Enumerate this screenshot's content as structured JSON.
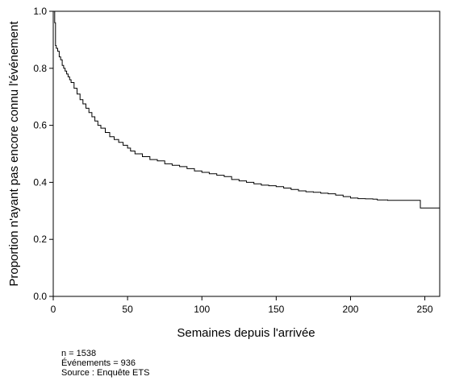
{
  "chart_data": {
    "type": "line",
    "line_style": "step",
    "xlabel": "Semaines depuis l'arrivée",
    "ylabel": "Proportion n'ayant pas encore connu l'événement",
    "xlim": [
      0,
      260
    ],
    "ylim": [
      0.0,
      1.0
    ],
    "x_ticks": [
      "0",
      "50",
      "100",
      "150",
      "200",
      "250"
    ],
    "y_ticks": [
      "0.0",
      "0.2",
      "0.4",
      "0.6",
      "0.8",
      "1.0"
    ],
    "grid": false,
    "series": [
      {
        "x": [
          0,
          1,
          1.5,
          2,
          3,
          4,
          5,
          6,
          7,
          8,
          9,
          10,
          11,
          12,
          14,
          16,
          18,
          20,
          22,
          24,
          26,
          28,
          30,
          32,
          35,
          38,
          41,
          44,
          47,
          50,
          52,
          55,
          60,
          65,
          70,
          75,
          80,
          85,
          90,
          95,
          100,
          105,
          110,
          115,
          120,
          125,
          130,
          135,
          140,
          145,
          150,
          155,
          160,
          165,
          170,
          175,
          180,
          185,
          190,
          195,
          200,
          205,
          210,
          215,
          218,
          225,
          230,
          240,
          247,
          250,
          260
        ],
        "y": [
          1.0,
          0.96,
          0.88,
          0.87,
          0.86,
          0.84,
          0.83,
          0.81,
          0.8,
          0.79,
          0.78,
          0.77,
          0.76,
          0.75,
          0.73,
          0.71,
          0.69,
          0.675,
          0.66,
          0.645,
          0.63,
          0.615,
          0.6,
          0.59,
          0.575,
          0.56,
          0.55,
          0.54,
          0.53,
          0.52,
          0.51,
          0.5,
          0.49,
          0.48,
          0.475,
          0.465,
          0.46,
          0.455,
          0.448,
          0.44,
          0.435,
          0.43,
          0.425,
          0.42,
          0.41,
          0.405,
          0.4,
          0.395,
          0.39,
          0.388,
          0.385,
          0.38,
          0.375,
          0.37,
          0.367,
          0.365,
          0.362,
          0.36,
          0.355,
          0.35,
          0.345,
          0.343,
          0.342,
          0.341,
          0.338,
          0.337,
          0.337,
          0.337,
          0.31,
          0.31,
          0.31
        ]
      }
    ]
  },
  "notes": {
    "n": "n = 1538",
    "events": "Événements = 936",
    "source": "Source : Enquête ETS"
  }
}
